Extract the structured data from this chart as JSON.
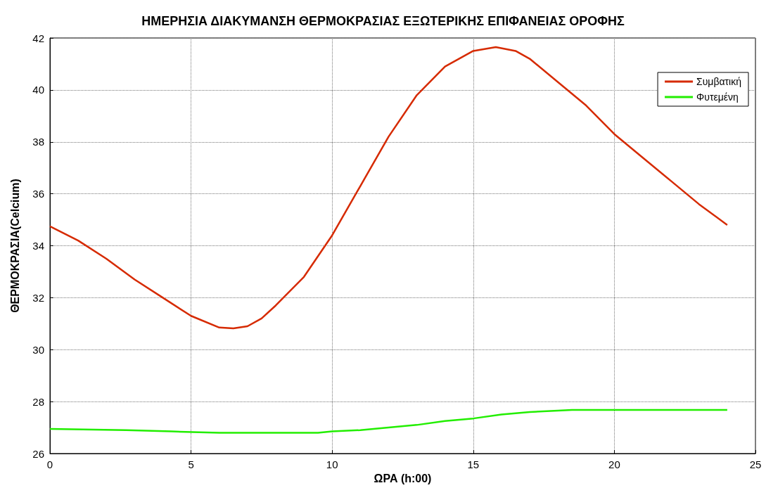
{
  "chart_data": {
    "type": "line",
    "title": "ΗΜΕΡΗΣΙΑ ΔΙΑΚΥΜΑΝΣΗ ΘΕΡΜΟΚΡΑΣΙΑΣ ΕΞΩΤΕΡΙΚΗΣ ΕΠΙΦΑΝΕΙΑΣ ΟΡΟΦΗΣ",
    "xlabel": "ΩΡΑ (h:00)",
    "ylabel": "ΘΕΡΜΟΚΡΑΣΙΑ(Celcium)",
    "xlim": [
      0,
      25
    ],
    "xticks": [
      0,
      5,
      10,
      15,
      20,
      25
    ],
    "ylim": [
      26,
      42
    ],
    "yticks": [
      26,
      28,
      30,
      32,
      34,
      36,
      38,
      40,
      42
    ],
    "grid": true,
    "legend": "top right",
    "marker": "none",
    "line_style": "solid",
    "series": [
      {
        "name": "Συμβατική",
        "color": "#d62a00",
        "x": [
          0,
          1,
          2,
          3,
          4,
          5,
          6,
          6.5,
          7,
          7.5,
          8,
          9,
          10,
          11,
          12,
          13,
          14,
          15,
          15.8,
          16.5,
          17,
          18,
          19,
          20,
          21,
          22,
          23,
          24
        ],
        "values": [
          34.75,
          34.2,
          33.5,
          32.7,
          32.0,
          31.3,
          30.85,
          30.82,
          30.9,
          31.2,
          31.7,
          32.8,
          34.4,
          36.3,
          38.2,
          39.8,
          40.9,
          41.5,
          41.65,
          41.5,
          41.2,
          40.3,
          39.4,
          38.3,
          37.4,
          36.5,
          35.6,
          34.8
        ]
      },
      {
        "name": "Φυτεμένη",
        "color": "#22ee00",
        "x": [
          0,
          2.7,
          4.3,
          6,
          9.5,
          10,
          11,
          12,
          13,
          14,
          15,
          16,
          17,
          18,
          18.5,
          24
        ],
        "values": [
          26.95,
          26.9,
          26.85,
          26.8,
          26.8,
          26.85,
          26.9,
          27.0,
          27.1,
          27.25,
          27.35,
          27.5,
          27.6,
          27.65,
          27.68,
          27.68
        ]
      }
    ]
  }
}
